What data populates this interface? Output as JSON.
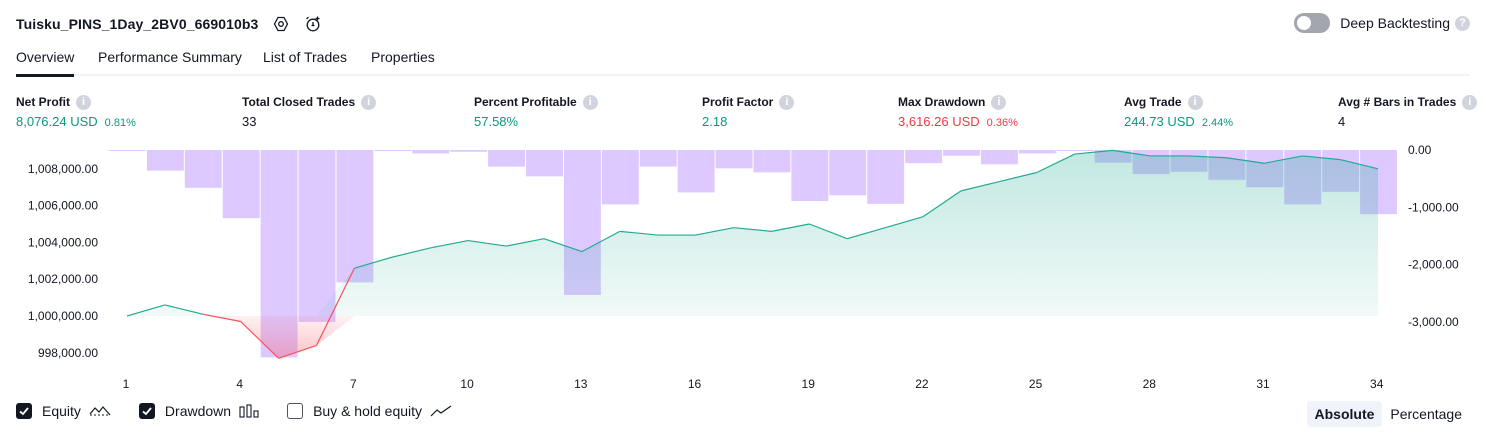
{
  "header": {
    "strategy_name": "Tuisku_PINS_1Day_2BV0_669010b3",
    "deep_backtesting_label": "Deep Backtesting",
    "settings_icon": "gear-icon",
    "alert_icon": "add-alert-icon"
  },
  "tabs": [
    {
      "label": "Overview",
      "active": true
    },
    {
      "label": "Performance Summary",
      "active": false
    },
    {
      "label": "List of Trades",
      "active": false
    },
    {
      "label": "Properties",
      "active": false
    }
  ],
  "stats": [
    {
      "label": "Net Profit",
      "value": "8,076.24 USD",
      "pct": "0.81%",
      "color": "#089981"
    },
    {
      "label": "Total Closed Trades",
      "value": "33",
      "pct": "",
      "color": "#131722"
    },
    {
      "label": "Percent Profitable",
      "value": "57.58%",
      "pct": "",
      "color": "#089981"
    },
    {
      "label": "Profit Factor",
      "value": "2.18",
      "pct": "",
      "color": "#089981"
    },
    {
      "label": "Max Drawdown",
      "value": "3,616.26 USD",
      "pct": "0.36%",
      "color": "#f23645"
    },
    {
      "label": "Avg Trade",
      "value": "244.73 USD",
      "pct": "2.44%",
      "color": "#089981"
    },
    {
      "label": "Avg # Bars in Trades",
      "value": "4",
      "pct": "",
      "color": "#131722"
    }
  ],
  "chart_data": {
    "type": "line",
    "x": [
      1,
      2,
      3,
      4,
      5,
      6,
      7,
      8,
      9,
      10,
      11,
      12,
      13,
      14,
      15,
      16,
      17,
      18,
      19,
      20,
      21,
      22,
      23,
      24,
      25,
      26,
      27,
      28,
      29,
      30,
      31,
      32,
      33,
      34
    ],
    "x_ticks": [
      "1",
      "4",
      "7",
      "10",
      "13",
      "16",
      "19",
      "22",
      "25",
      "28",
      "31",
      "34"
    ],
    "y_left_ticks": [
      "1,008,000.00",
      "1,006,000.00",
      "1,004,000.00",
      "1,002,000.00",
      "1,000,000.00",
      "998,000.00"
    ],
    "y_right_ticks": [
      "0.00",
      "-1,000.00",
      "-2,000.00",
      "-3,000.00"
    ],
    "ylim_left": [
      997500,
      1009000
    ],
    "ylim_right": [
      -3600,
      0
    ],
    "baseline": 1000000,
    "series": [
      {
        "name": "Equity",
        "axis": "left",
        "values": [
          1000000,
          1000600,
          1000100,
          999700,
          997700,
          998400,
          1002600,
          1003200,
          1003700,
          1004100,
          1003800,
          1004200,
          1003500,
          1004600,
          1004400,
          1004400,
          1004800,
          1004600,
          1005000,
          1004200,
          1004800,
          1005400,
          1006800,
          1007300,
          1007800,
          1008800,
          1009000,
          1008700,
          1008700,
          1008600,
          1008300,
          1008700,
          1008500,
          1008000
        ]
      },
      {
        "name": "Drawdown",
        "axis": "right",
        "values": [
          -10,
          -360,
          -660,
          -1190,
          -3620,
          -3000,
          -2310,
          0,
          -60,
          -30,
          -290,
          -460,
          -2530,
          -950,
          -290,
          -740,
          -320,
          -390,
          -890,
          -790,
          -940,
          -230,
          -100,
          -250,
          -60,
          -10,
          -220,
          -420,
          -380,
          -520,
          -650,
          -950,
          -730,
          -1120
        ]
      }
    ],
    "colors": {
      "equity_up": "#22ab94",
      "equity_down": "#f7525f",
      "drawdown_bar": "#b388ff",
      "equity_area": "#22ab94"
    }
  },
  "bottom": {
    "legend": [
      {
        "label": "Equity",
        "checked": true,
        "icon": "equity-line-icon"
      },
      {
        "label": "Drawdown",
        "checked": true,
        "icon": "drawdown-bars-icon"
      },
      {
        "label": "Buy & hold equity",
        "checked": false,
        "icon": "buy-hold-line-icon"
      }
    ],
    "modes": [
      {
        "label": "Absolute",
        "active": true
      },
      {
        "label": "Percentage",
        "active": false
      }
    ]
  }
}
